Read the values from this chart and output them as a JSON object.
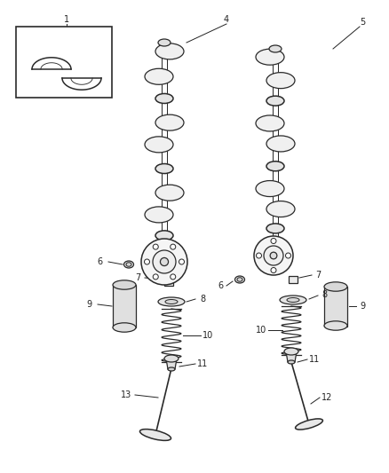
{
  "bg_color": "#ffffff",
  "line_color": "#2a2a2a",
  "label_color": "#222222",
  "fig_width": 4.38,
  "fig_height": 5.33,
  "dpi": 100
}
